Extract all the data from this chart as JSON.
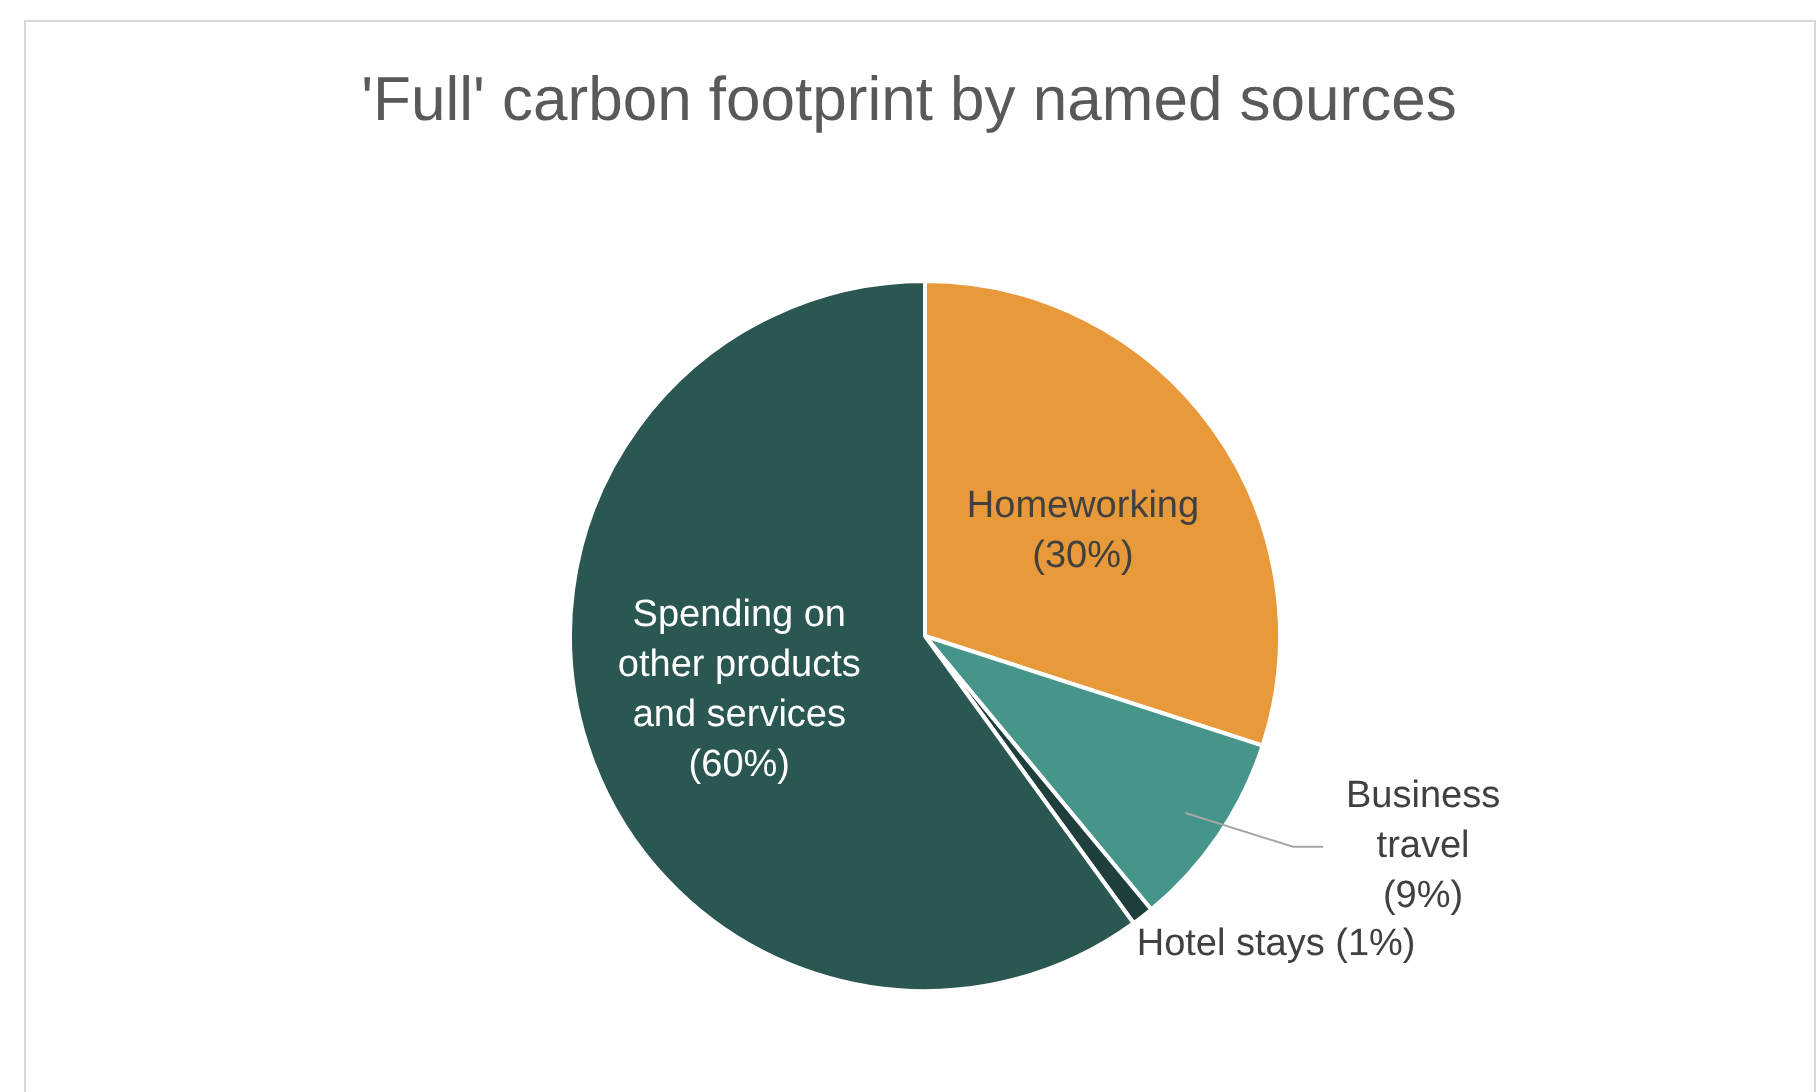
{
  "chart_data": {
    "type": "pie",
    "title": "'Full' carbon footprint by named sources",
    "categories": [
      "Homeworking",
      "Business travel",
      "Hotel stays",
      "Spending on other products and services"
    ],
    "values": [
      30,
      9,
      1,
      60
    ],
    "value_labels": [
      "(30%)",
      "(9%)",
      "(1%)",
      "(60%)"
    ],
    "colors": [
      "#e89a3a",
      "#46958b",
      "#1f3f3c",
      "#2b5753"
    ],
    "legend": false
  }
}
